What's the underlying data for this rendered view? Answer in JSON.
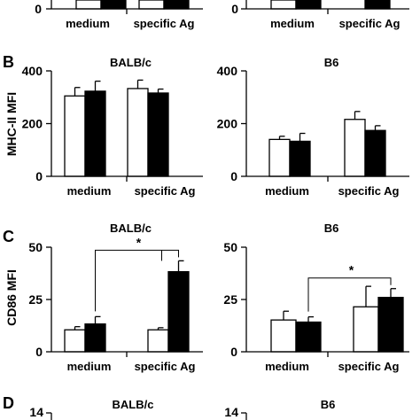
{
  "panel_letters": {
    "B": "B",
    "C": "C",
    "D": "D"
  },
  "x_categories": [
    "medium",
    "specific Ag"
  ],
  "chart_data": [
    {
      "id": "panel-A-left",
      "type": "bar",
      "cropped": true,
      "categories": [
        "medium",
        "specific Ag"
      ],
      "ylim": [
        0,
        null
      ],
      "yticks": [
        0
      ],
      "tick_labels": [
        "0"
      ]
    },
    {
      "id": "panel-A-right",
      "type": "bar",
      "cropped": true,
      "categories": [
        "medium",
        "specific Ag"
      ],
      "ylim": [
        0,
        null
      ],
      "yticks": [
        0
      ],
      "tick_labels": [
        "0"
      ]
    },
    {
      "id": "panel-B-left",
      "type": "bar",
      "title": "BALB/c",
      "ylabel": "MHC-II MFI",
      "categories": [
        "medium",
        "specific Ag"
      ],
      "ylim": [
        0,
        400
      ],
      "yticks": [
        0,
        200,
        400
      ],
      "tick_labels": [
        "0",
        "200",
        "400"
      ],
      "series": [
        {
          "fill": "#ffffff",
          "values": [
            305,
            333
          ],
          "errors": [
            32,
            32
          ]
        },
        {
          "fill": "#000000",
          "values": [
            323,
            316
          ],
          "errors": [
            38,
            15
          ]
        }
      ]
    },
    {
      "id": "panel-B-right",
      "type": "bar",
      "title": "B6",
      "categories": [
        "medium",
        "specific Ag"
      ],
      "ylim": [
        0,
        400
      ],
      "yticks": [
        0,
        200,
        400
      ],
      "tick_labels": [
        "0",
        "200",
        "400"
      ],
      "series": [
        {
          "fill": "#ffffff",
          "values": [
            140,
            216
          ],
          "errors": [
            12,
            30
          ]
        },
        {
          "fill": "#000000",
          "values": [
            133,
            174
          ],
          "errors": [
            30,
            18
          ]
        }
      ]
    },
    {
      "id": "panel-C-left",
      "type": "bar",
      "title": "BALB/c",
      "ylabel": "CD86 MFI",
      "categories": [
        "medium",
        "specific Ag"
      ],
      "ylim": [
        0,
        50
      ],
      "yticks": [
        0,
        25,
        50
      ],
      "tick_labels": [
        "0",
        "25",
        "50"
      ],
      "series": [
        {
          "fill": "#ffffff",
          "values": [
            10.5,
            10.5
          ],
          "errors": [
            1.5,
            1.0
          ]
        },
        {
          "fill": "#000000",
          "values": [
            13.3,
            38.3
          ],
          "errors": [
            3.5,
            5.2
          ]
        }
      ],
      "significance": [
        {
          "from": [
            "medium",
            1
          ],
          "to": [
            "specific Ag",
            1
          ],
          "label": "*"
        }
      ]
    },
    {
      "id": "panel-C-right",
      "type": "bar",
      "title": "B6",
      "categories": [
        "medium",
        "specific Ag"
      ],
      "ylim": [
        0,
        50
      ],
      "yticks": [
        0,
        25,
        50
      ],
      "tick_labels": [
        "0",
        "25",
        "50"
      ],
      "series": [
        {
          "fill": "#ffffff",
          "values": [
            15.2,
            21.5
          ],
          "errors": [
            4.2,
            9.8
          ]
        },
        {
          "fill": "#000000",
          "values": [
            14.2,
            26.0
          ],
          "errors": [
            2.5,
            4.2
          ]
        }
      ],
      "significance": [
        {
          "from": [
            "medium",
            1
          ],
          "to": [
            "specific Ag",
            1
          ],
          "label": "*"
        }
      ]
    },
    {
      "id": "panel-D-left",
      "type": "bar",
      "title": "BALB/c",
      "cropped": true,
      "yticks": [
        14
      ],
      "tick_labels": [
        "14"
      ]
    },
    {
      "id": "panel-D-right",
      "type": "bar",
      "title": "B6",
      "cropped": true,
      "yticks": [
        14
      ],
      "tick_labels": [
        "14"
      ]
    }
  ]
}
